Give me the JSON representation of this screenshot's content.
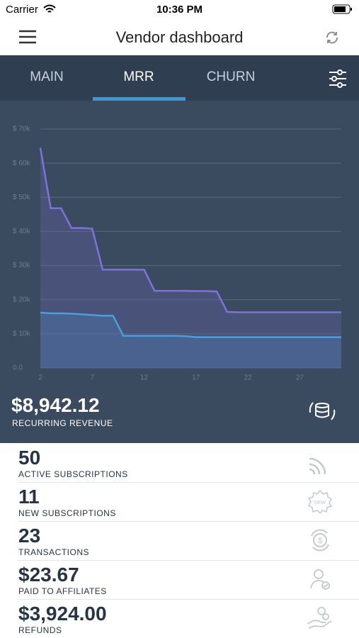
{
  "status_bar": {
    "carrier": "Carrier",
    "time": "10:36 PM"
  },
  "header": {
    "title": "Vendor dashboard"
  },
  "tabs": [
    "MAIN",
    "MRR",
    "CHURN"
  ],
  "chart_data": {
    "type": "line",
    "x": [
      2,
      3,
      4,
      5,
      6,
      7,
      8,
      9,
      10,
      11,
      12,
      13,
      14,
      15,
      16,
      17,
      18,
      19,
      20,
      21,
      22,
      23,
      24,
      25,
      26,
      27,
      28,
      29,
      30,
      31
    ],
    "series": [
      {
        "color": "#7e72d8",
        "values": [
          64500,
          46800,
          46800,
          41000,
          41000,
          40800,
          28800,
          28800,
          28800,
          28800,
          28800,
          22600,
          22600,
          22600,
          22600,
          22500,
          22500,
          22400,
          16400,
          16300,
          16300,
          16300,
          16300,
          16300,
          16300,
          16300,
          16300,
          16300,
          16300,
          16300
        ]
      },
      {
        "color": "#4d9ddd",
        "values": [
          16200,
          16000,
          16000,
          15900,
          15700,
          15500,
          15300,
          15300,
          9400,
          9400,
          9400,
          9400,
          9400,
          9400,
          9300,
          9000,
          9000,
          9000,
          9000,
          9000,
          9000,
          9000,
          9000,
          9000,
          9000,
          9000,
          9000,
          9000,
          9000,
          9000
        ]
      }
    ],
    "xlim": [
      2,
      31
    ],
    "xticks": [
      2,
      7,
      12,
      17,
      22,
      27
    ],
    "ylim": [
      0,
      70000
    ],
    "yticks": [
      {
        "value": 0,
        "label": "0.0"
      },
      {
        "value": 10000,
        "label": "$ 10k"
      },
      {
        "value": 20000,
        "label": "$ 20k"
      },
      {
        "value": 30000,
        "label": "$ 30k"
      },
      {
        "value": 40000,
        "label": "$ 40k"
      },
      {
        "value": 50000,
        "label": "$ 50k"
      },
      {
        "value": 60000,
        "label": "$ 60k"
      },
      {
        "value": 70000,
        "label": "$ 70k"
      }
    ],
    "grid": true
  },
  "summary": {
    "value": "$8,942.12",
    "label": "RECURRING REVENUE"
  },
  "metrics": [
    {
      "value": "50",
      "label": "ACTIVE SUBSCRIPTIONS"
    },
    {
      "value": "11",
      "label": "NEW SUBSCRIPTIONS"
    },
    {
      "value": "23",
      "label": "TRANSACTIONS"
    },
    {
      "value": "$23.67",
      "label": "PAID TO AFFILIATES"
    },
    {
      "value": "$3,924.00",
      "label": "REFUNDS"
    }
  ]
}
